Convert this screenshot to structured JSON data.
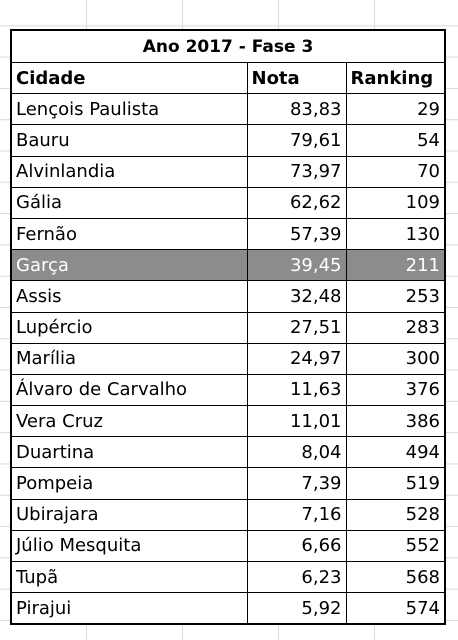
{
  "table": {
    "title": "Ano 2017 - Fase 3",
    "headers": [
      "Cidade",
      "Nota",
      "Ranking"
    ],
    "highlight_color": "#8c8c8c",
    "rows": [
      {
        "cidade": "Lençois Paulista",
        "nota": "83,83",
        "ranking": "29",
        "highlighted": false
      },
      {
        "cidade": "Bauru",
        "nota": "79,61",
        "ranking": "54",
        "highlighted": false
      },
      {
        "cidade": "Alvinlandia",
        "nota": "73,97",
        "ranking": "70",
        "highlighted": false
      },
      {
        "cidade": "Gália",
        "nota": "62,62",
        "ranking": "109",
        "highlighted": false
      },
      {
        "cidade": "Fernão",
        "nota": "57,39",
        "ranking": "130",
        "highlighted": false
      },
      {
        "cidade": "Garça",
        "nota": "39,45",
        "ranking": "211",
        "highlighted": true
      },
      {
        "cidade": "Assis",
        "nota": "32,48",
        "ranking": "253",
        "highlighted": false
      },
      {
        "cidade": "Lupércio",
        "nota": "27,51",
        "ranking": "283",
        "highlighted": false
      },
      {
        "cidade": "Marília",
        "nota": "24,97",
        "ranking": "300",
        "highlighted": false
      },
      {
        "cidade": "Álvaro de Carvalho",
        "nota": "11,63",
        "ranking": "376",
        "highlighted": false
      },
      {
        "cidade": "Vera Cruz",
        "nota": "11,01",
        "ranking": "386",
        "highlighted": false
      },
      {
        "cidade": "Duartina",
        "nota": "8,04",
        "ranking": "494",
        "highlighted": false
      },
      {
        "cidade": "Pompeia",
        "nota": "7,39",
        "ranking": "519",
        "highlighted": false
      },
      {
        "cidade": "Ubirajara",
        "nota": "7,16",
        "ranking": "528",
        "highlighted": false
      },
      {
        "cidade": "Júlio Mesquita",
        "nota": "6,66",
        "ranking": "552",
        "highlighted": false
      },
      {
        "cidade": "Tupã",
        "nota": "6,23",
        "ranking": "568",
        "highlighted": false
      },
      {
        "cidade": "Pirajui",
        "nota": "5,92",
        "ranking": "574",
        "highlighted": false
      }
    ]
  }
}
